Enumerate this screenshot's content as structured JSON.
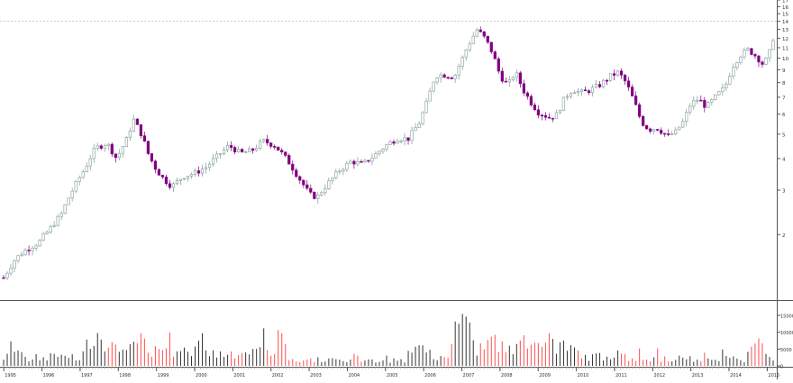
{
  "chart_data": {
    "type": "candlestick",
    "price_scale": "log",
    "price_ylim": [
      1.1,
      17
    ],
    "price_ticks": [
      "17",
      "16",
      "15",
      "14",
      "13",
      "12",
      "11",
      "10",
      "9",
      "8",
      "7",
      "6",
      "5",
      "4",
      "3",
      "2"
    ],
    "volume_ylim": [
      0,
      19000
    ],
    "volume_ticks": [
      "15000",
      "10000",
      "5000",
      "0"
    ],
    "x_tick_labels": [
      "1995",
      "1996",
      "1997",
      "1998",
      "1999",
      "2000",
      "2001",
      "2002",
      "2003",
      "2004",
      "2005",
      "2006",
      "2007",
      "2008",
      "2009",
      "2010",
      "2011",
      "2012",
      "2013",
      "2014",
      "2015"
    ],
    "reference_line": 14,
    "colors": {
      "up": "#ffffff",
      "up_outline": "#7f9a9a",
      "down": "#800080",
      "volume_up": "#333333",
      "volume_down": "#ff4d4d",
      "reference": "#bbbbbb",
      "axis": "#555555"
    },
    "price_close_path": [
      [
        1995.0,
        1.35
      ],
      [
        1995.3,
        1.6
      ],
      [
        1995.6,
        1.75
      ],
      [
        1995.9,
        1.85
      ],
      [
        1996.2,
        2.1
      ],
      [
        1996.5,
        2.4
      ],
      [
        1996.8,
        3.0
      ],
      [
        1997.1,
        3.6
      ],
      [
        1997.4,
        4.4
      ],
      [
        1997.7,
        4.6
      ],
      [
        1997.95,
        4.0
      ],
      [
        1998.2,
        4.7
      ],
      [
        1998.4,
        5.7
      ],
      [
        1998.6,
        5.0
      ],
      [
        1998.8,
        4.1
      ],
      [
        1999.0,
        3.6
      ],
      [
        1999.2,
        3.3
      ],
      [
        1999.4,
        3.1
      ],
      [
        1999.7,
        3.4
      ],
      [
        2000.0,
        3.5
      ],
      [
        2000.3,
        3.7
      ],
      [
        2000.6,
        4.1
      ],
      [
        2000.9,
        4.5
      ],
      [
        2001.2,
        4.2
      ],
      [
        2001.5,
        4.3
      ],
      [
        2001.8,
        4.7
      ],
      [
        2002.1,
        4.5
      ],
      [
        2002.4,
        4.0
      ],
      [
        2002.7,
        3.4
      ],
      [
        2003.0,
        2.9
      ],
      [
        2003.2,
        2.8
      ],
      [
        2003.5,
        3.2
      ],
      [
        2003.8,
        3.6
      ],
      [
        2004.1,
        3.9
      ],
      [
        2004.4,
        3.8
      ],
      [
        2004.7,
        4.1
      ],
      [
        2005.0,
        4.5
      ],
      [
        2005.3,
        4.8
      ],
      [
        2005.6,
        4.8
      ],
      [
        2005.9,
        5.6
      ],
      [
        2006.1,
        6.8
      ],
      [
        2006.3,
        8.5
      ],
      [
        2006.5,
        8.6
      ],
      [
        2006.8,
        8.4
      ],
      [
        2007.0,
        9.9
      ],
      [
        2007.2,
        11.5
      ],
      [
        2007.4,
        13.0
      ],
      [
        2007.6,
        12.0
      ],
      [
        2007.8,
        10.5
      ],
      [
        2008.0,
        8.5
      ],
      [
        2008.2,
        7.8
      ],
      [
        2008.4,
        8.8
      ],
      [
        2008.6,
        7.5
      ],
      [
        2008.8,
        6.7
      ],
      [
        2009.0,
        6.1
      ],
      [
        2009.3,
        5.8
      ],
      [
        2009.5,
        6.0
      ],
      [
        2009.7,
        7.0
      ],
      [
        2009.9,
        7.5
      ],
      [
        2010.1,
        7.3
      ],
      [
        2010.3,
        7.4
      ],
      [
        2010.6,
        7.8
      ],
      [
        2010.9,
        8.5
      ],
      [
        2011.1,
        8.8
      ],
      [
        2011.3,
        8.0
      ],
      [
        2011.5,
        6.8
      ],
      [
        2011.7,
        5.6
      ],
      [
        2011.9,
        5.2
      ],
      [
        2012.1,
        5.3
      ],
      [
        2012.4,
        4.9
      ],
      [
        2012.6,
        5.1
      ],
      [
        2012.8,
        5.6
      ],
      [
        2013.0,
        6.6
      ],
      [
        2013.2,
        6.9
      ],
      [
        2013.4,
        6.4
      ],
      [
        2013.6,
        6.9
      ],
      [
        2013.9,
        7.7
      ],
      [
        2014.1,
        9.3
      ],
      [
        2014.3,
        10.3
      ],
      [
        2014.5,
        10.8
      ],
      [
        2014.7,
        10.2
      ],
      [
        2014.9,
        9.4
      ],
      [
        2015.05,
        10.4
      ],
      [
        2015.15,
        12.0
      ]
    ],
    "volume_profile": [
      [
        1995.0,
        2000
      ],
      [
        1995.3,
        9000
      ],
      [
        1995.5,
        2500
      ],
      [
        1996.0,
        3000
      ],
      [
        1996.5,
        3500
      ],
      [
        1997.0,
        3500
      ],
      [
        1997.3,
        12000
      ],
      [
        1997.8,
        6000
      ],
      [
        1998.2,
        5500
      ],
      [
        1998.6,
        9000
      ],
      [
        1999.0,
        4500
      ],
      [
        1999.5,
        5500
      ],
      [
        2000.0,
        6500
      ],
      [
        2000.2,
        8000
      ],
      [
        2000.5,
        5000
      ],
      [
        2001.0,
        4500
      ],
      [
        2001.5,
        4000
      ],
      [
        2001.8,
        14500
      ],
      [
        2002.0,
        4000
      ],
      [
        2002.2,
        11500
      ],
      [
        2002.5,
        2000
      ],
      [
        2003.0,
        2500
      ],
      [
        2003.5,
        2000
      ],
      [
        2004.0,
        1800
      ],
      [
        2004.5,
        1600
      ],
      [
        2005.0,
        1800
      ],
      [
        2005.5,
        2200
      ],
      [
        2005.9,
        10000
      ],
      [
        2006.2,
        3000
      ],
      [
        2006.5,
        4000
      ],
      [
        2006.8,
        6500
      ],
      [
        2007.0,
        18500
      ],
      [
        2007.3,
        6500
      ],
      [
        2007.8,
        8000
      ],
      [
        2008.2,
        5500
      ],
      [
        2008.6,
        7500
      ],
      [
        2009.0,
        7000
      ],
      [
        2009.3,
        8000
      ],
      [
        2009.6,
        7500
      ],
      [
        2010.0,
        4000
      ],
      [
        2010.5,
        3000
      ],
      [
        2011.0,
        3500
      ],
      [
        2011.5,
        2500
      ],
      [
        2012.0,
        2500
      ],
      [
        2012.5,
        2200
      ],
      [
        2013.0,
        2500
      ],
      [
        2013.5,
        2800
      ],
      [
        2014.0,
        2500
      ],
      [
        2014.4,
        2200
      ],
      [
        2014.75,
        9000
      ],
      [
        2015.0,
        2800
      ],
      [
        2015.2,
        2500
      ]
    ]
  }
}
